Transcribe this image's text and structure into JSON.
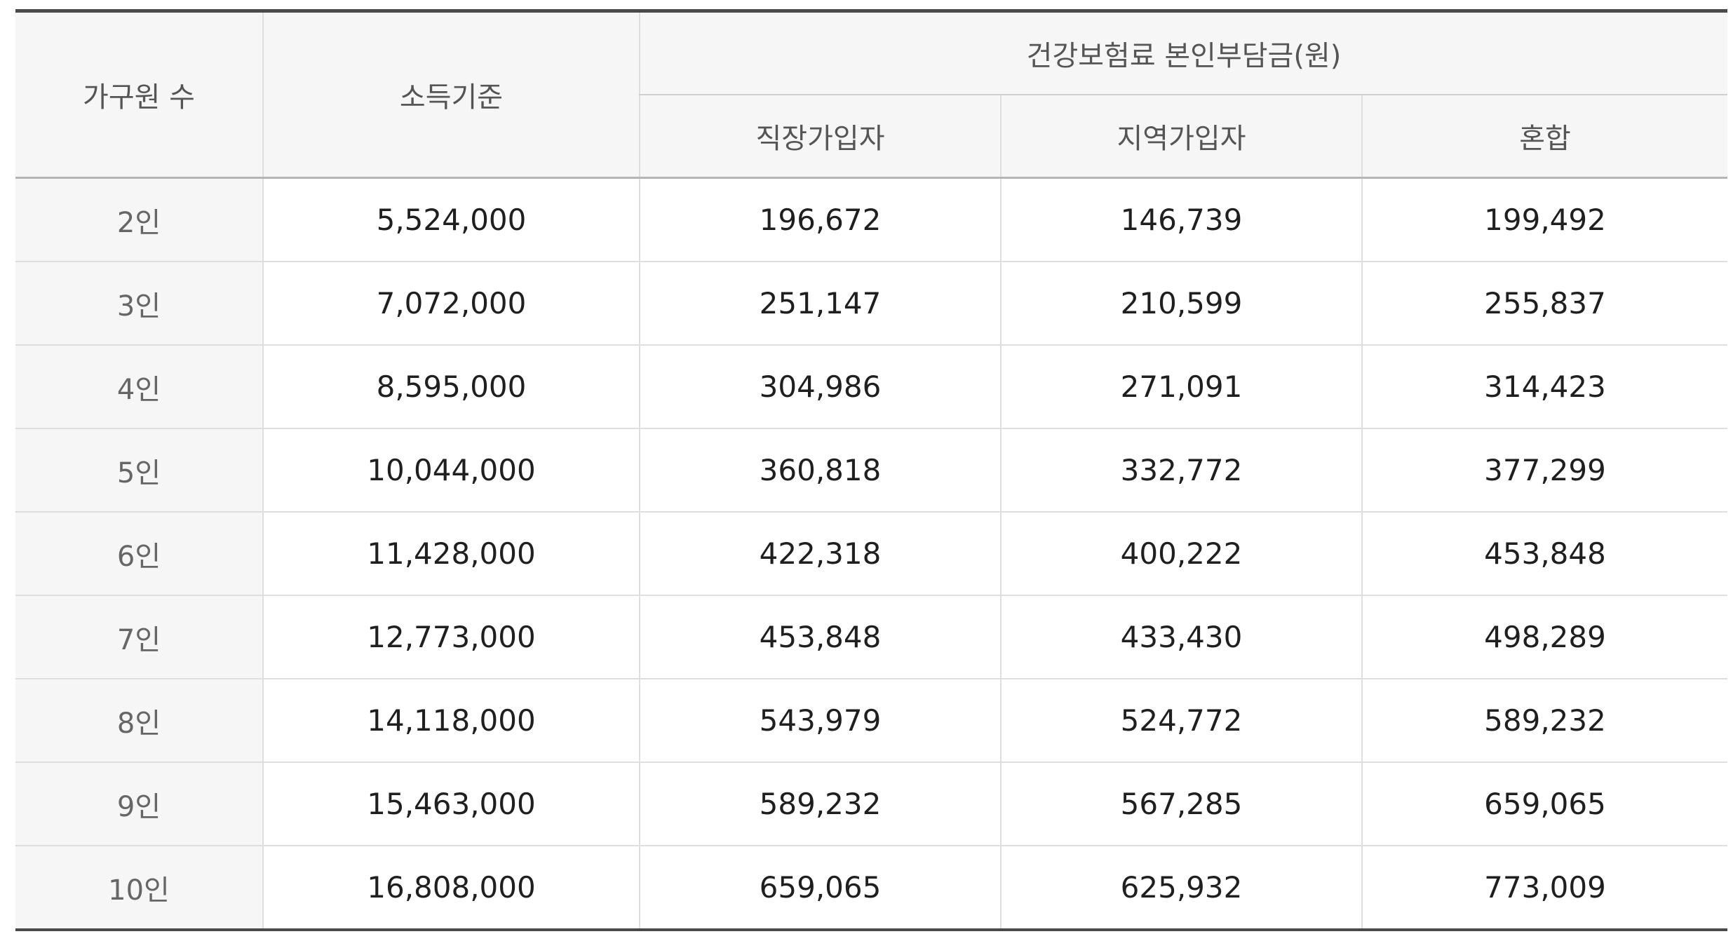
{
  "header": {
    "household": "가구원 수",
    "income": "소득기준",
    "insurance_group": "건강보험료 본인부담금(원)",
    "employee": "직장가입자",
    "regional": "지역가입자",
    "mixed": "혼합"
  },
  "rows": [
    {
      "household": "2인",
      "income": "5,524,000",
      "employee": "196,672",
      "regional": "146,739",
      "mixed": "199,492"
    },
    {
      "household": "3인",
      "income": "7,072,000",
      "employee": "251,147",
      "regional": "210,599",
      "mixed": "255,837"
    },
    {
      "household": "4인",
      "income": "8,595,000",
      "employee": "304,986",
      "regional": "271,091",
      "mixed": "314,423"
    },
    {
      "household": "5인",
      "income": "10,044,000",
      "employee": "360,818",
      "regional": "332,772",
      "mixed": "377,299"
    },
    {
      "household": "6인",
      "income": "11,428,000",
      "employee": "422,318",
      "regional": "400,222",
      "mixed": "453,848"
    },
    {
      "household": "7인",
      "income": "12,773,000",
      "employee": "453,848",
      "regional": "433,430",
      "mixed": "498,289"
    },
    {
      "household": "8인",
      "income": "14,118,000",
      "employee": "543,979",
      "regional": "524,772",
      "mixed": "589,232"
    },
    {
      "household": "9인",
      "income": "15,463,000",
      "employee": "589,232",
      "regional": "567,285",
      "mixed": "659,065"
    },
    {
      "household": "10인",
      "income": "16,808,000",
      "employee": "659,065",
      "regional": "625,932",
      "mixed": "773,009"
    }
  ]
}
